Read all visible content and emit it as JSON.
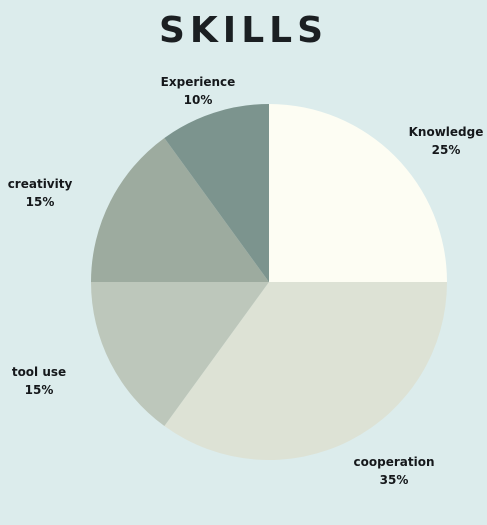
{
  "chart_data": {
    "type": "pie",
    "title": "SKILLS",
    "start_angle_deg": -90,
    "direction": "clockwise",
    "slices": [
      {
        "label": "Knowledge",
        "value": 25,
        "value_label": "25%",
        "color": "#fdfdf3"
      },
      {
        "label": "cooperation",
        "value": 35,
        "value_label": "35%",
        "color": "#dde2d5"
      },
      {
        "label": "tool use",
        "value": 15,
        "value_label": "15%",
        "color": "#bdc7bb"
      },
      {
        "label": "creativity",
        "value": 15,
        "value_label": "15%",
        "color": "#9dab9f"
      },
      {
        "label": "Experience",
        "value": 10,
        "value_label": "10%",
        "color": "#7c948e"
      }
    ]
  }
}
